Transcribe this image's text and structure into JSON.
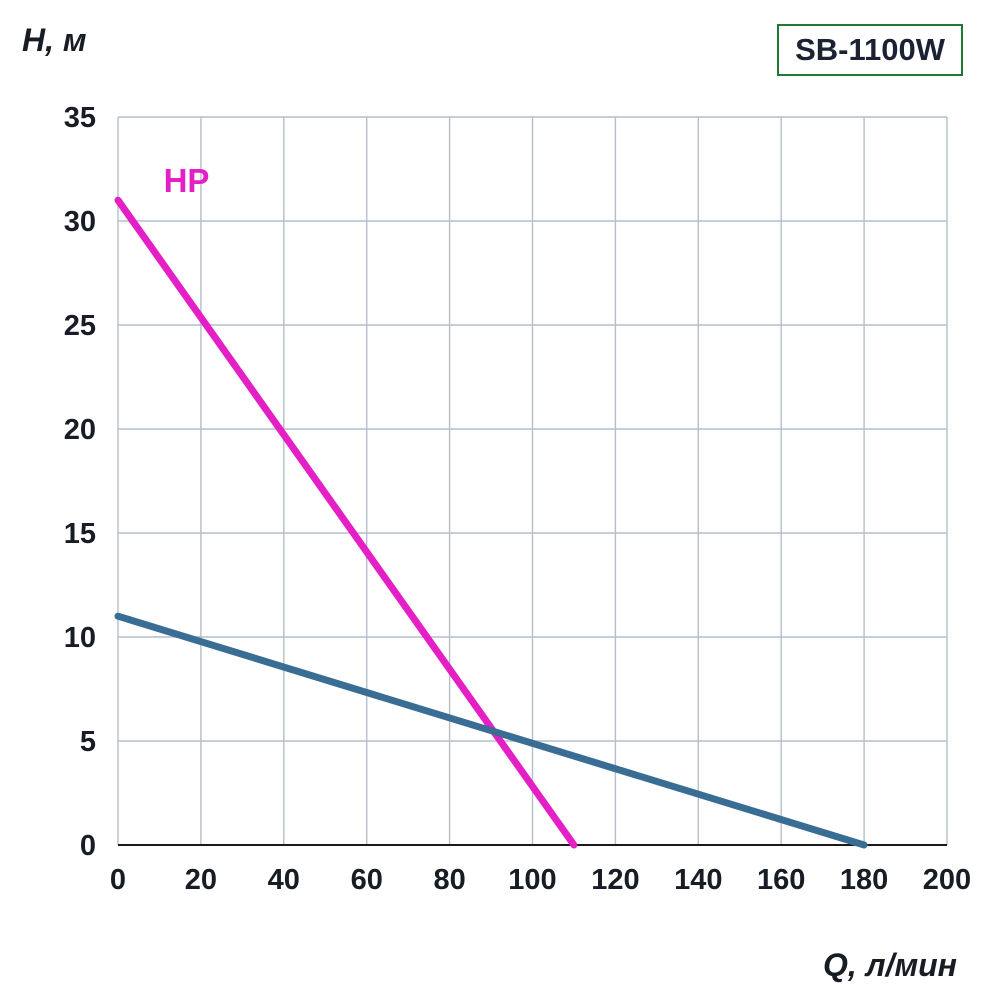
{
  "badge": {
    "text": "SB-1100W",
    "border_color": "#1e7a34",
    "text_color": "#1b2233"
  },
  "chart_data": {
    "type": "line",
    "title": "",
    "xlabel": "Q, л/мин",
    "ylabel": "H, м",
    "xlim": [
      0,
      200
    ],
    "ylim": [
      0,
      35
    ],
    "x_ticks": [
      0,
      20,
      40,
      60,
      80,
      100,
      120,
      140,
      160,
      180,
      200
    ],
    "y_ticks": [
      0,
      5,
      10,
      15,
      20,
      25,
      30,
      35
    ],
    "grid": true,
    "grid_color": "#b4bfca",
    "axis_color": "#1a1a1a",
    "tick_color": "#181c24",
    "legend_position": "none",
    "series": [
      {
        "id": "hp-curve",
        "name": "HP",
        "color": "#e41fc6",
        "points": [
          [
            0,
            31
          ],
          [
            110,
            0
          ]
        ],
        "label": {
          "text": "HP",
          "x": 11,
          "y": 31.4
        }
      },
      {
        "id": "flow-head-curve",
        "name": "",
        "color": "#3a6d94",
        "points": [
          [
            0,
            11
          ],
          [
            180,
            0
          ]
        ]
      }
    ]
  }
}
